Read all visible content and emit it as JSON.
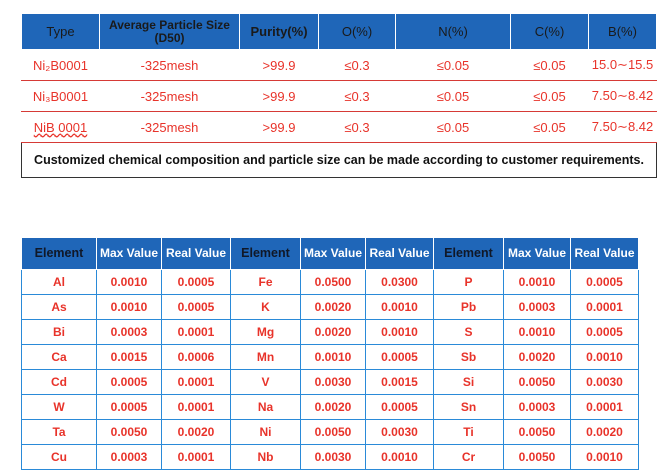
{
  "spec_table": {
    "headers": [
      "Type",
      "Average Particle Size (D50)",
      "Purity(%)",
      "O(%)",
      "N(%)",
      "C(%)",
      "B(%)"
    ],
    "rows": [
      [
        "Ni₂B0001",
        "-325mesh",
        ">99.9",
        "≤0.3",
        "≤0.05",
        "≤0.05",
        "15.0∼15.5"
      ],
      [
        "Ni₃B0001",
        "-325mesh",
        ">99.9",
        "≤0.3",
        "≤0.05",
        "≤0.05",
        "7.50∼8.42"
      ],
      [
        "NiB 0001",
        "-325mesh",
        ">99.9",
        "≤0.3",
        "≤0.05",
        "≤0.05",
        "7.50∼8.42"
      ]
    ],
    "note": "Customized chemical composition and particle size can be made according to customer requirements."
  },
  "impurity_table": {
    "headers": [
      "Element",
      "Max Value",
      "Real Value",
      "Element",
      "Max Value",
      "Real Value",
      "Element",
      "Max Value",
      "Real Value"
    ],
    "rows": [
      [
        "Al",
        "0.0010",
        "0.0005",
        "Fe",
        "0.0500",
        "0.0300",
        "P",
        "0.0010",
        "0.0005"
      ],
      [
        "As",
        "0.0010",
        "0.0005",
        "K",
        "0.0020",
        "0.0010",
        "Pb",
        "0.0003",
        "0.0001"
      ],
      [
        "Bi",
        "0.0003",
        "0.0001",
        "Mg",
        "0.0020",
        "0.0010",
        "S",
        "0.0010",
        "0.0005"
      ],
      [
        "Ca",
        "0.0015",
        "0.0006",
        "Mn",
        "0.0010",
        "0.0005",
        "Sb",
        "0.0020",
        "0.0010"
      ],
      [
        "Cd",
        "0.0005",
        "0.0001",
        "V",
        "0.0030",
        "0.0015",
        "Si",
        "0.0050",
        "0.0030"
      ],
      [
        "W",
        "0.0005",
        "0.0001",
        "Na",
        "0.0020",
        "0.0005",
        "Sn",
        "0.0003",
        "0.0001"
      ],
      [
        "Ta",
        "0.0050",
        "0.0020",
        "Ni",
        "0.0050",
        "0.0030",
        "Ti",
        "0.0050",
        "0.0020"
      ],
      [
        "Cu",
        "0.0003",
        "0.0001",
        "Nb",
        "0.0030",
        "0.0010",
        "Cr",
        "0.0050",
        "0.0010"
      ]
    ]
  },
  "colors": {
    "header_blue": "#1f66b8",
    "value_red": "#e8332a",
    "grid_blue": "#2a8ad8"
  }
}
